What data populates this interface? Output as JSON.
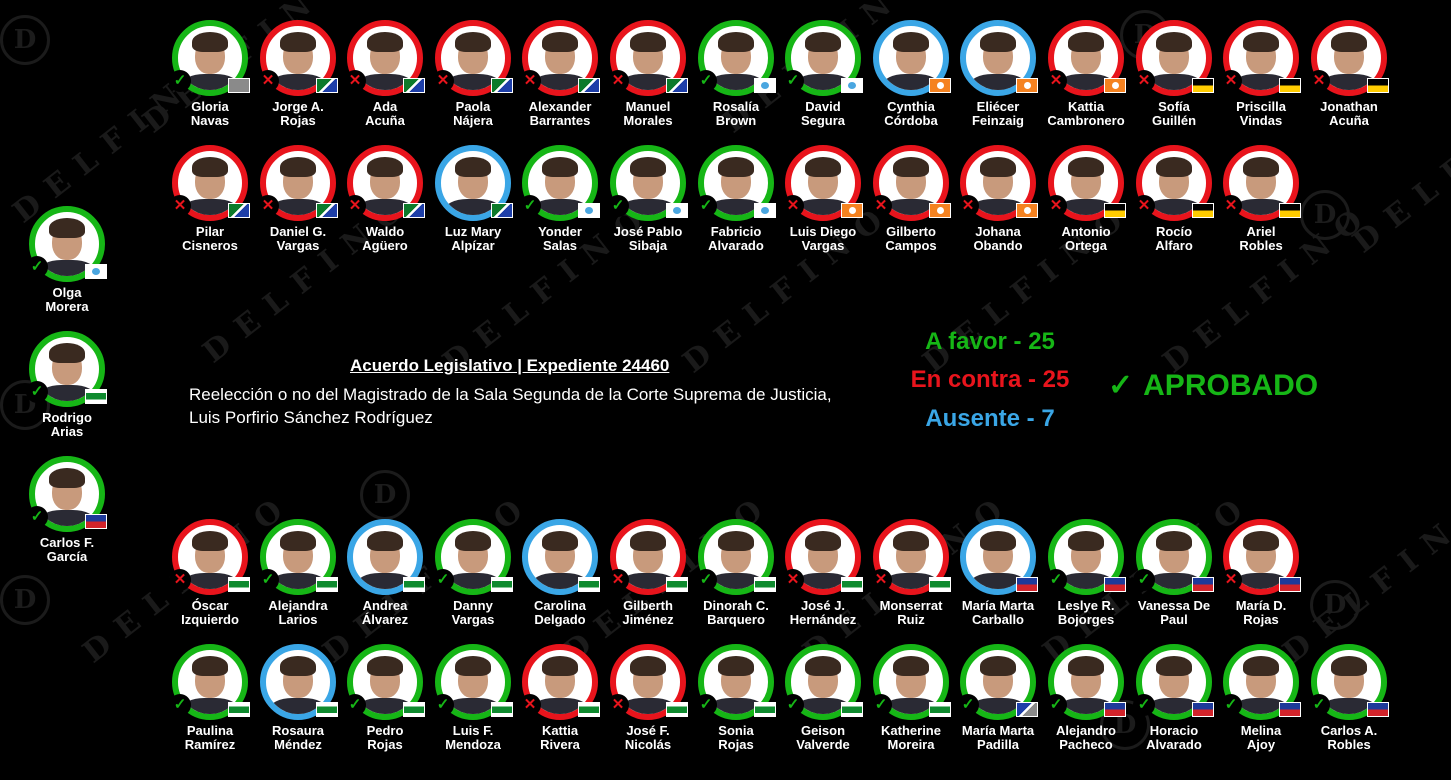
{
  "watermark": "DELFINO",
  "watermark_logo": "D",
  "bill": {
    "title": "Acuerdo Legislativo | Expediente 24460",
    "description": "Reelección o no del Magistrado de la Sala Segunda de la Corte Suprema de Justicia, Luis Porfirio Sánchez Rodríguez"
  },
  "tally": {
    "favor": "A favor - 25",
    "contra": "En contra - 25",
    "ausente": "Ausente - 7"
  },
  "result": {
    "icon": "check-icon",
    "text": "APROBADO"
  },
  "vote_marks": {
    "favor": "✓",
    "contra": "✕",
    "ausente": ""
  },
  "colors": {
    "favor": "#16b616",
    "contra": "#e8141c",
    "ausente": "#3aa6e6"
  },
  "rows": [
    [
      {
        "name": "Gloria\nNavas",
        "vote": "favor",
        "flag": "gray"
      },
      {
        "name": "Jorge A.\nRojas",
        "vote": "contra",
        "flag": "pln"
      },
      {
        "name": "Ada\nAcuña",
        "vote": "contra",
        "flag": "pln"
      },
      {
        "name": "Paola\nNájera",
        "vote": "contra",
        "flag": "pln"
      },
      {
        "name": "Alexander\nBarrantes",
        "vote": "contra",
        "flag": "pln"
      },
      {
        "name": "Manuel\nMorales",
        "vote": "contra",
        "flag": "pln"
      },
      {
        "name": "Rosalía\nBrown",
        "vote": "favor",
        "flag": "pusc"
      },
      {
        "name": "David\nSegura",
        "vote": "favor",
        "flag": "pusc"
      },
      {
        "name": "Cynthia\nCórdoba",
        "vote": "ausente",
        "flag": "fa"
      },
      {
        "name": "Eliécer\nFeinzaig",
        "vote": "ausente",
        "flag": "fa"
      },
      {
        "name": "Kattia\nCambronero",
        "vote": "contra",
        "flag": "fa"
      },
      {
        "name": "Sofía\nGuillén",
        "vote": "contra",
        "flag": "fa2"
      },
      {
        "name": "Priscilla\nVindas",
        "vote": "contra",
        "flag": "fa2"
      },
      {
        "name": "Jonathan\nAcuña",
        "vote": "contra",
        "flag": "fa2"
      }
    ],
    [
      {
        "name": "Pilar\nCisneros",
        "vote": "contra",
        "flag": "pln"
      },
      {
        "name": "Daniel G.\nVargas",
        "vote": "contra",
        "flag": "pln"
      },
      {
        "name": "Waldo\nAgüero",
        "vote": "contra",
        "flag": "pln"
      },
      {
        "name": "Luz Mary\nAlpízar",
        "vote": "ausente",
        "flag": "pln"
      },
      {
        "name": "Yonder\nSalas",
        "vote": "favor",
        "flag": "pusc"
      },
      {
        "name": "José Pablo\nSibaja",
        "vote": "favor",
        "flag": "pusc"
      },
      {
        "name": "Fabricio\nAlvarado",
        "vote": "favor",
        "flag": "pusc"
      },
      {
        "name": "Luis Diego\nVargas",
        "vote": "contra",
        "flag": "fa"
      },
      {
        "name": "Gilberto\nCampos",
        "vote": "contra",
        "flag": "fa"
      },
      {
        "name": "Johana\nObando",
        "vote": "contra",
        "flag": "fa"
      },
      {
        "name": "Antonio\nOrtega",
        "vote": "contra",
        "flag": "fa2"
      },
      {
        "name": "Rocío\nAlfaro",
        "vote": "contra",
        "flag": "fa2"
      },
      {
        "name": "Ariel\nRobles",
        "vote": "contra",
        "flag": "fa2"
      }
    ],
    [
      {
        "name": "Óscar\nIzquierdo",
        "vote": "contra",
        "flag": "pprso"
      },
      {
        "name": "Alejandra\nLarios",
        "vote": "favor",
        "flag": "pprso"
      },
      {
        "name": "Andrea\nÁlvarez",
        "vote": "ausente",
        "flag": "pprso"
      },
      {
        "name": "Danny\nVargas",
        "vote": "favor",
        "flag": "pprso"
      },
      {
        "name": "Carolina\nDelgado",
        "vote": "ausente",
        "flag": "pprso"
      },
      {
        "name": "Gilberth\nJiménez",
        "vote": "contra",
        "flag": "pprso"
      },
      {
        "name": "Dinorah C.\nBarquero",
        "vote": "favor",
        "flag": "pprso"
      },
      {
        "name": "José J.\nHernández",
        "vote": "contra",
        "flag": "pprso"
      },
      {
        "name": "Monserrat\nRuiz",
        "vote": "contra",
        "flag": "pprso"
      },
      {
        "name": "María Marta\nCarballo",
        "vote": "ausente",
        "flag": "pls"
      },
      {
        "name": "Leslye R.\nBojorges",
        "vote": "favor",
        "flag": "pls"
      },
      {
        "name": "Vanessa De\nPaul",
        "vote": "favor",
        "flag": "pls"
      },
      {
        "name": "María D.\nRojas",
        "vote": "contra",
        "flag": "pls"
      }
    ],
    [
      {
        "name": "Paulina\nRamírez",
        "vote": "favor",
        "flag": "pprso"
      },
      {
        "name": "Rosaura\nMéndez",
        "vote": "ausente",
        "flag": "pprso"
      },
      {
        "name": "Pedro\nRojas",
        "vote": "favor",
        "flag": "pprso"
      },
      {
        "name": "Luis F.\nMendoza",
        "vote": "favor",
        "flag": "pprso"
      },
      {
        "name": "Kattia\nRivera",
        "vote": "contra",
        "flag": "pprso"
      },
      {
        "name": "José F.\nNicolás",
        "vote": "contra",
        "flag": "pprso"
      },
      {
        "name": "Sonia\nRojas",
        "vote": "favor",
        "flag": "pprso"
      },
      {
        "name": "Geison\nValverde",
        "vote": "favor",
        "flag": "pprso"
      },
      {
        "name": "Katherine\nMoreira",
        "vote": "favor",
        "flag": "pprso"
      },
      {
        "name": "María Marta\nPadilla",
        "vote": "favor",
        "flag": "gray2"
      },
      {
        "name": "Alejandro\nPacheco",
        "vote": "favor",
        "flag": "pls"
      },
      {
        "name": "Horacio\nAlvarado",
        "vote": "favor",
        "flag": "pls"
      },
      {
        "name": "Melina\nAjoy",
        "vote": "favor",
        "flag": "pls"
      },
      {
        "name": "Carlos A.\nRobles",
        "vote": "favor",
        "flag": "pls"
      }
    ]
  ],
  "side": [
    {
      "name": "Olga\nMorera",
      "vote": "favor",
      "flag": "pusc"
    },
    {
      "name": "Rodrigo\nArias",
      "vote": "favor",
      "flag": "pprso"
    },
    {
      "name": "Carlos F.\nGarcía",
      "vote": "favor",
      "flag": "pls"
    }
  ]
}
